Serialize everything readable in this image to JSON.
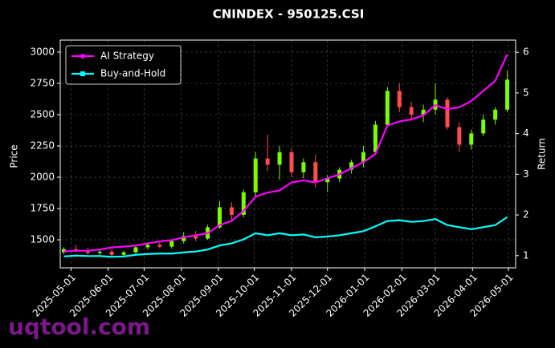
{
  "chart_data": {
    "type": "candlestick",
    "title": "CNINDEX - 950125.CSI",
    "x": [
      "2025-04-25",
      "2025-05-05",
      "2025-05-15",
      "2025-05-25",
      "2025-06-04",
      "2025-06-14",
      "2025-06-24",
      "2025-07-04",
      "2025-07-14",
      "2025-07-24",
      "2025-08-03",
      "2025-08-13",
      "2025-08-23",
      "2025-09-02",
      "2025-09-12",
      "2025-09-22",
      "2025-10-02",
      "2025-10-12",
      "2025-10-22",
      "2025-11-01",
      "2025-11-11",
      "2025-11-21",
      "2025-12-01",
      "2025-12-11",
      "2025-12-21",
      "2025-12-31",
      "2026-01-10",
      "2026-01-20",
      "2026-01-30",
      "2026-02-09",
      "2026-02-19",
      "2026-03-01",
      "2026-03-11",
      "2026-03-21",
      "2026-03-31",
      "2026-04-10",
      "2026-04-20",
      "2026-04-30"
    ],
    "open": [
      1400,
      1425,
      1410,
      1395,
      1405,
      1380,
      1400,
      1440,
      1460,
      1445,
      1490,
      1530,
      1510,
      1600,
      1760,
      1700,
      1880,
      2150,
      2100,
      2200,
      2040,
      2120,
      1960,
      1990,
      2060,
      2120,
      2200,
      2420,
      2690,
      2560,
      2500,
      2540,
      2620,
      2400,
      2260,
      2350,
      2460,
      2540
    ],
    "high": [
      1440,
      1460,
      1435,
      1420,
      1425,
      1410,
      1450,
      1480,
      1490,
      1500,
      1560,
      1570,
      1620,
      1810,
      1800,
      1900,
      2200,
      2340,
      2250,
      2230,
      2150,
      2180,
      2020,
      2080,
      2140,
      2250,
      2450,
      2720,
      2750,
      2600,
      2580,
      2750,
      2640,
      2440,
      2380,
      2500,
      2560,
      2850
    ],
    "low": [
      1385,
      1400,
      1380,
      1370,
      1365,
      1360,
      1390,
      1420,
      1430,
      1430,
      1470,
      1490,
      1500,
      1590,
      1650,
      1680,
      1850,
      2050,
      1980,
      2000,
      1990,
      1920,
      1880,
      1960,
      2030,
      2080,
      2180,
      2400,
      2520,
      2450,
      2440,
      2500,
      2380,
      2200,
      2220,
      2330,
      2420,
      2520
    ],
    "close": [
      1425,
      1410,
      1395,
      1405,
      1380,
      1400,
      1440,
      1460,
      1445,
      1490,
      1530,
      1510,
      1600,
      1760,
      1700,
      1880,
      2150,
      2100,
      2200,
      2040,
      2120,
      1960,
      1990,
      2060,
      2120,
      2200,
      2420,
      2690,
      2560,
      2500,
      2540,
      2620,
      2400,
      2260,
      2350,
      2460,
      2540,
      2780
    ],
    "up_color": "#7cfc00",
    "down_color": "#ff4d4d",
    "series": [
      {
        "name": "AI Strategy",
        "color": "#ff00ff",
        "axis": "y2",
        "marker": "circle",
        "values": [
          1.1,
          1.12,
          1.12,
          1.15,
          1.2,
          1.22,
          1.25,
          1.3,
          1.35,
          1.38,
          1.45,
          1.5,
          1.55,
          1.75,
          1.85,
          2.1,
          2.45,
          2.55,
          2.6,
          2.8,
          2.85,
          2.8,
          2.9,
          3.0,
          3.15,
          3.3,
          3.5,
          4.2,
          4.3,
          4.35,
          4.45,
          4.7,
          4.6,
          4.65,
          4.8,
          5.05,
          5.3,
          5.95
        ]
      },
      {
        "name": "Buy-and-Hold",
        "color": "#00ffff",
        "axis": "y2",
        "marker": "square",
        "values": [
          0.98,
          1.0,
          0.99,
          0.99,
          0.97,
          0.98,
          1.02,
          1.04,
          1.05,
          1.05,
          1.08,
          1.1,
          1.15,
          1.25,
          1.3,
          1.4,
          1.55,
          1.5,
          1.55,
          1.5,
          1.52,
          1.45,
          1.47,
          1.5,
          1.55,
          1.6,
          1.72,
          1.85,
          1.87,
          1.83,
          1.85,
          1.9,
          1.75,
          1.7,
          1.65,
          1.7,
          1.75,
          1.95
        ]
      }
    ],
    "ylabel": "Price",
    "y2label": "Return",
    "xlim": [
      "2025-04-22",
      "2026-05-07"
    ],
    "xticks": [
      "2025-05-01",
      "2025-06-01",
      "2025-07-01",
      "2025-08-01",
      "2025-09-01",
      "2025-10-01",
      "2025-11-01",
      "2025-12-01",
      "2026-01-01",
      "2026-02-01",
      "2026-03-01",
      "2026-04-01",
      "2026-05-01"
    ],
    "ylim": [
      1276,
      3096
    ],
    "yticks": [
      1500,
      1750,
      2000,
      2250,
      2500,
      2750,
      3000
    ],
    "y2lim": [
      0.7,
      6.3
    ],
    "y2ticks": [
      1,
      2,
      3,
      4,
      5,
      6
    ],
    "grid": true,
    "legend": "upper left"
  },
  "watermark": "uqtool.com"
}
